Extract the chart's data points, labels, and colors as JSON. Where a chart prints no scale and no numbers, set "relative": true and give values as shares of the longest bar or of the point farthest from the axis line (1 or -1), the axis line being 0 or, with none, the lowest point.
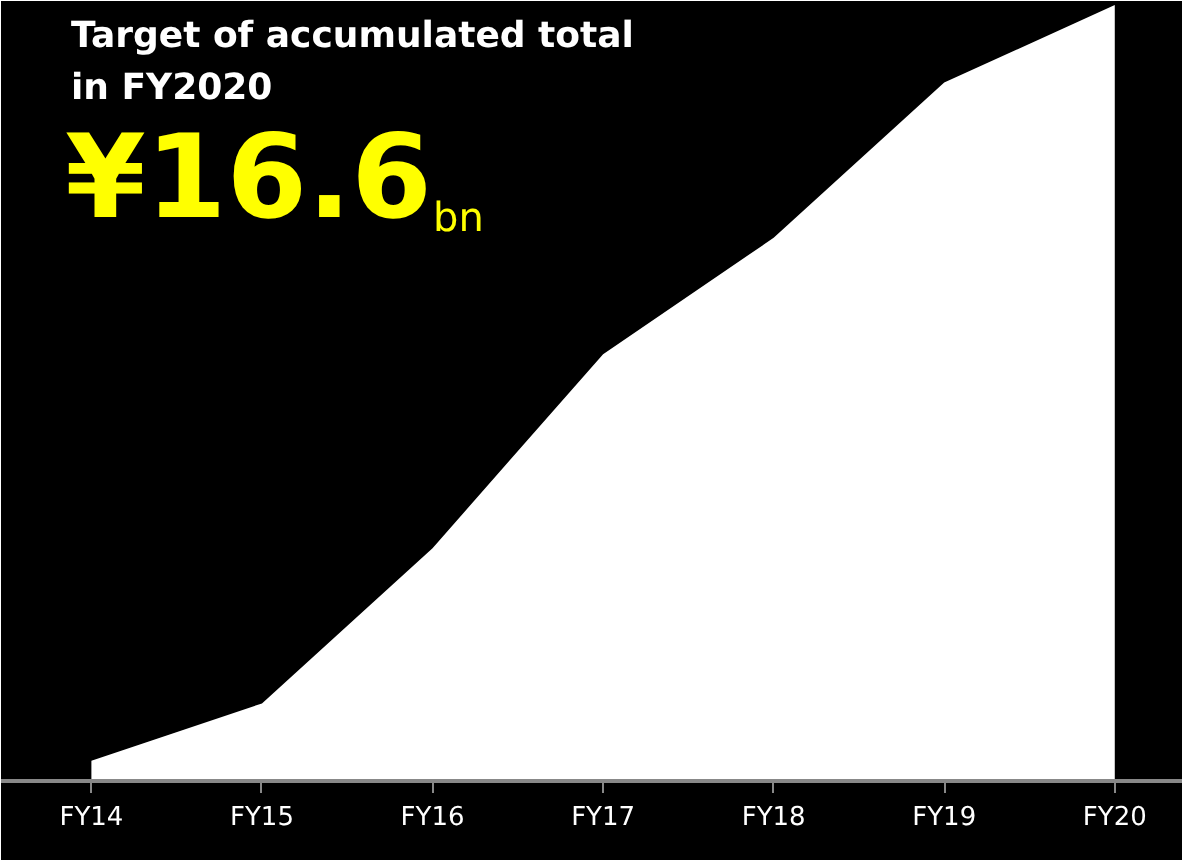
{
  "chart_data": {
    "type": "area",
    "relative": true,
    "title": "Target of accumulated total\nin FY2020",
    "annotations": [
      "¥16.6",
      "bn"
    ],
    "categories": [
      "FY14",
      "FY15",
      "FY16",
      "FY17",
      "FY18",
      "FY19",
      "FY20"
    ],
    "series": [
      {
        "color": "#ffffff",
        "values": [
          0.026,
          0.1,
          0.3,
          0.55,
          0.7,
          0.9,
          1.0
        ]
      }
    ],
    "grid": false
  }
}
